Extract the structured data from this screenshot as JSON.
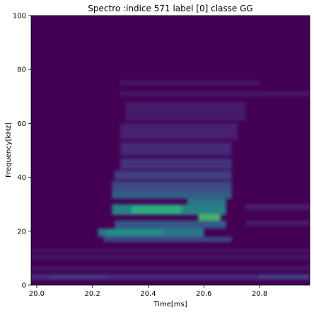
{
  "chart_data": {
    "type": "heatmap",
    "title": "Spectro :indice 571 label [0] classe GG",
    "xlabel": "Time[ms]",
    "ylabel": "Frequency[kHz]",
    "xlim": [
      19.98,
      20.98
    ],
    "ylim": [
      0,
      100
    ],
    "x_ticks": [
      20.0,
      20.2,
      20.4,
      20.6,
      20.8
    ],
    "x_tick_labels": [
      "20.0",
      "20.2",
      "20.4",
      "20.6",
      "20.8"
    ],
    "y_ticks": [
      0,
      20,
      40,
      60,
      80,
      100
    ],
    "y_tick_labels": [
      "0",
      "20",
      "40",
      "60",
      "80",
      "100"
    ],
    "colormap": "viridis",
    "background_color": "#440154",
    "grid": false,
    "regions": [
      {
        "t0": 20.27,
        "t1": 20.68,
        "f0": 26,
        "f1": 30,
        "intensity": 0.62
      },
      {
        "t0": 20.34,
        "t1": 20.52,
        "f0": 26.5,
        "f1": 29.5,
        "intensity": 0.78
      },
      {
        "t0": 20.58,
        "t1": 20.66,
        "f0": 23.8,
        "f1": 26.3,
        "intensity": 0.85
      },
      {
        "t0": 20.54,
        "t1": 20.68,
        "f0": 30,
        "f1": 32,
        "intensity": 0.55
      },
      {
        "t0": 20.22,
        "t1": 20.6,
        "f0": 18,
        "f1": 21,
        "intensity": 0.55
      },
      {
        "t0": 20.25,
        "t1": 20.45,
        "f0": 18.5,
        "f1": 20.5,
        "intensity": 0.65
      },
      {
        "t0": 20.28,
        "t1": 20.68,
        "f0": 21,
        "f1": 24,
        "intensity": 0.4
      },
      {
        "t0": 20.24,
        "t1": 20.7,
        "f0": 16,
        "f1": 18,
        "intensity": 0.3
      },
      {
        "t0": 20.27,
        "t1": 20.7,
        "f0": 32,
        "f1": 35,
        "intensity": 0.42
      },
      {
        "t0": 20.27,
        "t1": 20.7,
        "f0": 35,
        "f1": 38.5,
        "intensity": 0.32
      },
      {
        "t0": 20.28,
        "t1": 20.7,
        "f0": 39,
        "f1": 42.5,
        "intensity": 0.26
      },
      {
        "t0": 20.3,
        "t1": 20.7,
        "f0": 43,
        "f1": 47,
        "intensity": 0.2
      },
      {
        "t0": 20.3,
        "t1": 20.7,
        "f0": 48,
        "f1": 53,
        "intensity": 0.16
      },
      {
        "t0": 20.3,
        "t1": 20.72,
        "f0": 54,
        "f1": 60,
        "intensity": 0.13
      },
      {
        "t0": 20.32,
        "t1": 20.75,
        "f0": 61,
        "f1": 68,
        "intensity": 0.1
      },
      {
        "t0": 20.3,
        "t1": 20.98,
        "f0": 70,
        "f1": 72,
        "intensity": 0.09
      },
      {
        "t0": 20.3,
        "t1": 20.8,
        "f0": 74,
        "f1": 76,
        "intensity": 0.07
      },
      {
        "t0": 19.98,
        "t1": 20.98,
        "f0": 2,
        "f1": 4,
        "intensity": 0.18
      },
      {
        "t0": 20.05,
        "t1": 20.25,
        "f0": 2.5,
        "f1": 3.5,
        "intensity": 0.28
      },
      {
        "t0": 20.8,
        "t1": 20.98,
        "f0": 2.5,
        "f1": 3.8,
        "intensity": 0.3
      },
      {
        "t0": 19.98,
        "t1": 20.98,
        "f0": 5.5,
        "f1": 7,
        "intensity": 0.11
      },
      {
        "t0": 19.98,
        "t1": 20.98,
        "f0": 9.5,
        "f1": 11,
        "intensity": 0.1
      },
      {
        "t0": 19.98,
        "t1": 20.98,
        "f0": 12,
        "f1": 13.5,
        "intensity": 0.09
      },
      {
        "t0": 20.75,
        "t1": 20.98,
        "f0": 28,
        "f1": 30,
        "intensity": 0.12
      },
      {
        "t0": 20.75,
        "t1": 20.98,
        "f0": 22,
        "f1": 24,
        "intensity": 0.1
      }
    ]
  }
}
